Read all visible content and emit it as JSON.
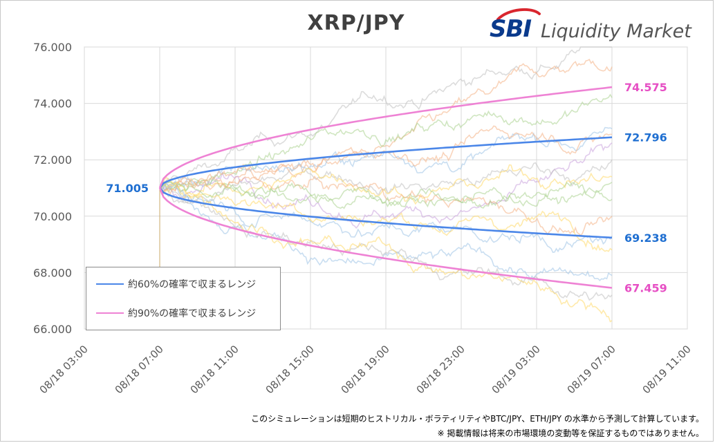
{
  "header": {
    "title": "XRP/JPY"
  },
  "logo": {
    "brand": "SBI",
    "text": "Liquidity Market"
  },
  "notes": {
    "line1": "このシミュレーションは短期のヒストリカル・ボラティリティやBTC/JPY、ETH/JPY の水準から予測して計算しています。",
    "line2": "※ 掲載情報は将来の市場環境の変動等を保証するものではありません。"
  },
  "legend": {
    "items": [
      {
        "label": "約60%の確率で収まるレンジ",
        "color": "#4a86e8"
      },
      {
        "label": "約90%の確率で収まるレンジ",
        "color": "#ee82d4"
      }
    ]
  },
  "chart_data": {
    "type": "line",
    "title": "XRP/JPY",
    "y_ticks": [
      "76.000",
      "74.000",
      "72.000",
      "70.000",
      "68.000",
      "66.000"
    ],
    "ylim": [
      66,
      76
    ],
    "x_ticks": [
      "08/18 03:00",
      "08/18 07:00",
      "08/18 11:00",
      "08/18 15:00",
      "08/18 19:00",
      "08/18 23:00",
      "08/19 03:00",
      "08/19 07:00",
      "08/19 11:00"
    ],
    "x_range_hours": [
      0,
      32
    ],
    "grid": true,
    "legend_position": "bottom-left",
    "start": {
      "hour": 4,
      "value": 71.005,
      "label": "71.005"
    },
    "end_hour": 28,
    "bands": [
      {
        "name": "約60%の確率で収まるレンジ",
        "color": "#4a86e8",
        "upper_end": 72.796,
        "lower_end": 69.238,
        "upper_label": "72.796",
        "lower_label": "69.238"
      },
      {
        "name": "約90%の確率で収まるレンジ",
        "color": "#ee82d4",
        "upper_end": 74.575,
        "lower_end": 67.459,
        "upper_label": "74.575",
        "lower_label": "67.459"
      }
    ],
    "simulation_paths": [
      {
        "color": "#bfbfbf",
        "end": 76.0
      },
      {
        "color": "#f4b183",
        "end": 75.3
      },
      {
        "color": "#a9d18e",
        "end": 74.2
      },
      {
        "color": "#9dc3e6",
        "end": 73.1
      },
      {
        "color": "#c9a0dc",
        "end": 72.6
      },
      {
        "color": "#bfbfbf",
        "end": 72.0
      },
      {
        "color": "#ffd966",
        "end": 71.4
      },
      {
        "color": "#a9d18e",
        "end": 70.6
      },
      {
        "color": "#f4b183",
        "end": 70.0
      },
      {
        "color": "#9dc3e6",
        "end": 69.3
      },
      {
        "color": "#ffd966",
        "end": 68.8
      },
      {
        "color": "#9dc3e6",
        "end": 67.9
      },
      {
        "color": "#bfbfbf",
        "end": 67.2
      },
      {
        "color": "#ffd966",
        "end": 66.3
      },
      {
        "color": "#a9d18e",
        "end": 71.2
      },
      {
        "color": "#f4b183",
        "end": 72.9
      }
    ]
  }
}
